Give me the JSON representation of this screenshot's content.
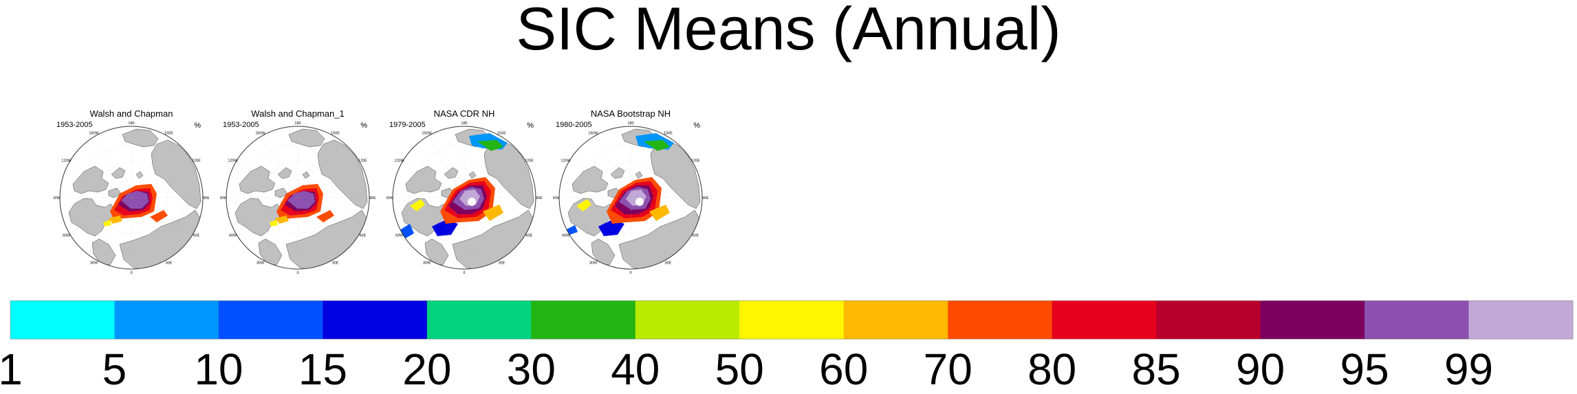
{
  "page": {
    "title": "SIC Means (Annual)"
  },
  "panels": [
    {
      "title": "Walsh and Chapman",
      "period": "1953-2005",
      "units": "%",
      "variant": "wc"
    },
    {
      "title": "Walsh and Chapman_1",
      "period": "1953-2005",
      "units": "%",
      "variant": "wc"
    },
    {
      "title": "NASA CDR NH",
      "period": "1979-2005",
      "units": "%",
      "variant": "cdr"
    },
    {
      "title": "NASA Bootstrap NH",
      "period": "1980-2005",
      "units": "%",
      "variant": "boot"
    }
  ],
  "map_graticule_labels": [
    "180",
    "150E",
    "120E",
    "90E",
    "60E",
    "30E",
    "0",
    "30W",
    "60W",
    "90W",
    "120W",
    "150W"
  ],
  "chart_data": {
    "type": "heatmap",
    "title": "SIC Means (Annual)",
    "units": "%",
    "colorbar": {
      "tick_labels": [
        "1",
        "5",
        "10",
        "15",
        "20",
        "30",
        "40",
        "50",
        "60",
        "70",
        "80",
        "85",
        "90",
        "95",
        "99"
      ],
      "bins": [
        {
          "from": 1,
          "to": 5,
          "color": "#00ffff"
        },
        {
          "from": 5,
          "to": 10,
          "color": "#0096ff"
        },
        {
          "from": 10,
          "to": 15,
          "color": "#0050ff"
        },
        {
          "from": 15,
          "to": 20,
          "color": "#0000e0"
        },
        {
          "from": 20,
          "to": 30,
          "color": "#00d27d"
        },
        {
          "from": 30,
          "to": 40,
          "color": "#22b514"
        },
        {
          "from": 40,
          "to": 50,
          "color": "#b9eb00"
        },
        {
          "from": 50,
          "to": 60,
          "color": "#fff500"
        },
        {
          "from": 60,
          "to": 70,
          "color": "#ffb900"
        },
        {
          "from": 70,
          "to": 80,
          "color": "#ff4b00"
        },
        {
          "from": 80,
          "to": 85,
          "color": "#e6001c"
        },
        {
          "from": 85,
          "to": 90,
          "color": "#b9002d"
        },
        {
          "from": 90,
          "to": 95,
          "color": "#7d005f"
        },
        {
          "from": 95,
          "to": 99,
          "color": "#8c50af"
        },
        {
          "from": 99,
          "to": 100,
          "color": "#c3a8d7"
        }
      ]
    },
    "land_color": "#c0c0c0",
    "ocean_color": "#ffffff"
  }
}
